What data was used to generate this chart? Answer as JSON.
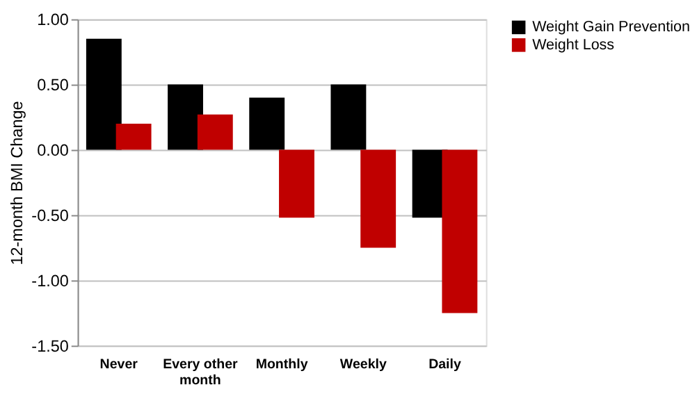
{
  "chart_data": {
    "type": "bar",
    "ylabel": "12-month BMI Change",
    "categories": [
      "Never",
      "Every other month",
      "Monthly",
      "Weekly",
      "Daily"
    ],
    "series": [
      {
        "name": "Weight Gain Prevention",
        "color": "#000000",
        "values": [
          0.85,
          0.5,
          0.4,
          0.5,
          -0.52
        ]
      },
      {
        "name": "Weight Loss",
        "color": "#c00000",
        "values": [
          0.2,
          0.27,
          -0.52,
          -0.75,
          -1.25
        ]
      }
    ],
    "ylim": [
      -1.5,
      1.0
    ],
    "yticks": [
      {
        "value": -1.5,
        "label": "-1.50"
      },
      {
        "value": -1.0,
        "label": "-1.00"
      },
      {
        "value": -0.5,
        "label": "-0.50"
      },
      {
        "value": 0,
        "label": "0.00"
      },
      {
        "value": 0.5,
        "label": "0.50"
      },
      {
        "value": 1.0,
        "label": "1.00"
      }
    ],
    "grid": "y",
    "legend": "right"
  }
}
